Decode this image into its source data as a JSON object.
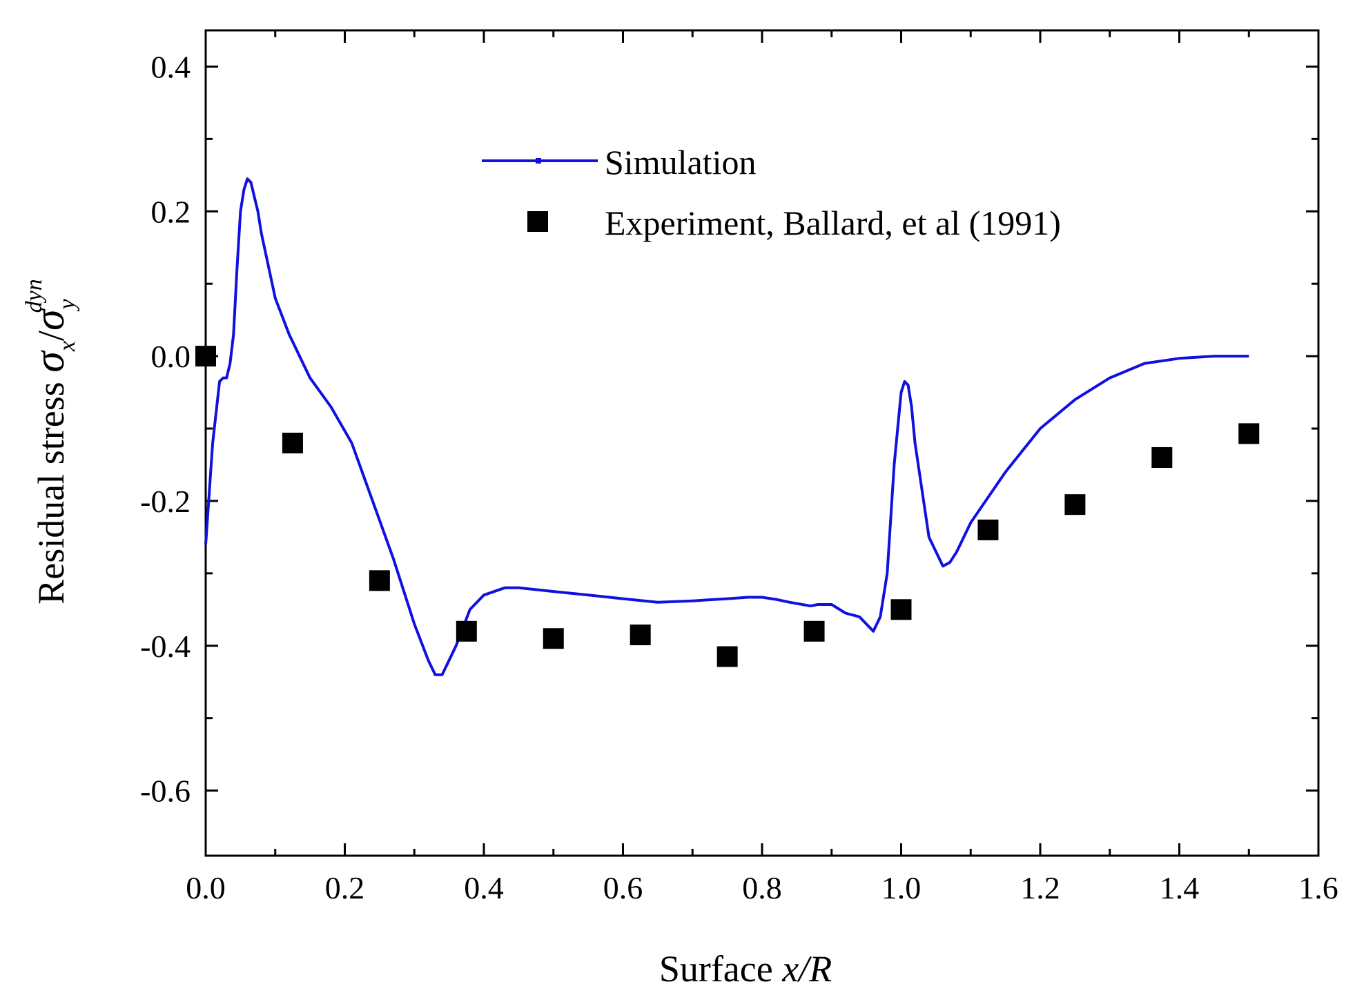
{
  "chart_data": {
    "type": "line",
    "title": "",
    "xlabel": {
      "prefix": "Surface ",
      "variable": "x/R"
    },
    "ylabel": {
      "prefix": "Residual stress ",
      "sigma": "σ",
      "sub1": "x",
      "slash": "/",
      "sub2": "y",
      "sup2": "dyn"
    },
    "xlim": [
      0.0,
      1.6
    ],
    "ylim": [
      -0.69,
      0.45
    ],
    "x_ticks": [
      0.0,
      0.2,
      0.4,
      0.6,
      0.8,
      1.0,
      1.2,
      1.4,
      1.6
    ],
    "x_tick_labels": [
      "0.0",
      "0.2",
      "0.4",
      "0.6",
      "0.8",
      "1.0",
      "1.2",
      "1.4",
      "1.6"
    ],
    "y_ticks": [
      0.4,
      0.2,
      0.0,
      -0.2,
      -0.4,
      -0.6
    ],
    "y_tick_labels": [
      "0.4",
      "0.2",
      "0.0",
      "-0.2",
      "-0.4",
      "-0.6"
    ],
    "y_minor_ticks": [
      0.3,
      0.1,
      -0.1,
      -0.3,
      -0.5
    ],
    "x_minor_ticks": [
      0.1,
      0.3,
      0.5,
      0.7,
      0.9,
      1.1,
      1.3,
      1.5
    ],
    "grid": false,
    "legend_position": "top-center",
    "colors": {
      "simulation": "#1010e0",
      "experiment": "#000000"
    },
    "series": [
      {
        "name": "Simulation",
        "kind": "line",
        "x": [
          0.0,
          0.01,
          0.02,
          0.025,
          0.03,
          0.035,
          0.04,
          0.045,
          0.05,
          0.055,
          0.06,
          0.065,
          0.07,
          0.075,
          0.08,
          0.1,
          0.12,
          0.15,
          0.18,
          0.21,
          0.24,
          0.27,
          0.3,
          0.32,
          0.33,
          0.34,
          0.345,
          0.36,
          0.38,
          0.4,
          0.43,
          0.45,
          0.5,
          0.55,
          0.6,
          0.65,
          0.7,
          0.75,
          0.78,
          0.8,
          0.82,
          0.84,
          0.87,
          0.88,
          0.9,
          0.92,
          0.94,
          0.96,
          0.97,
          0.98,
          0.99,
          1.0,
          1.005,
          1.01,
          1.015,
          1.02,
          1.04,
          1.06,
          1.07,
          1.08,
          1.1,
          1.15,
          1.2,
          1.25,
          1.3,
          1.35,
          1.4,
          1.45,
          1.5
        ],
        "y": [
          -0.26,
          -0.12,
          -0.035,
          -0.03,
          -0.03,
          -0.01,
          0.03,
          0.12,
          0.2,
          0.23,
          0.245,
          0.24,
          0.22,
          0.2,
          0.17,
          0.08,
          0.03,
          -0.03,
          -0.07,
          -0.12,
          -0.2,
          -0.28,
          -0.37,
          -0.42,
          -0.44,
          -0.44,
          -0.43,
          -0.4,
          -0.35,
          -0.33,
          -0.32,
          -0.32,
          -0.325,
          -0.33,
          -0.335,
          -0.34,
          -0.338,
          -0.335,
          -0.333,
          -0.333,
          -0.336,
          -0.34,
          -0.345,
          -0.343,
          -0.343,
          -0.355,
          -0.36,
          -0.38,
          -0.36,
          -0.3,
          -0.15,
          -0.05,
          -0.035,
          -0.04,
          -0.07,
          -0.12,
          -0.25,
          -0.29,
          -0.285,
          -0.27,
          -0.23,
          -0.16,
          -0.1,
          -0.06,
          -0.03,
          -0.01,
          -0.003,
          0.0,
          0.0
        ]
      },
      {
        "name": "Experiment, Ballard, et al (1991)",
        "kind": "scatter",
        "marker": "square",
        "x": [
          0.0,
          0.125,
          0.25,
          0.375,
          0.5,
          0.625,
          0.75,
          0.875,
          1.0,
          1.125,
          1.25,
          1.375,
          1.5
        ],
        "y": [
          0.0,
          -0.12,
          -0.31,
          -0.38,
          -0.39,
          -0.385,
          -0.415,
          -0.38,
          -0.35,
          -0.24,
          -0.205,
          -0.14,
          -0.107
        ]
      }
    ]
  }
}
